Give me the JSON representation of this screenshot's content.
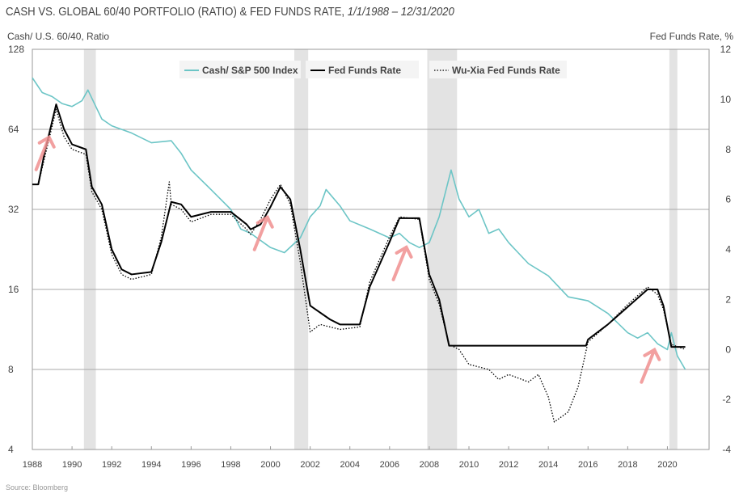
{
  "chart_data": {
    "type": "line",
    "title": "CASH VS. GLOBAL 60/40 PORTFOLIO (RATIO) & FED FUNDS RATE,",
    "subtitle": "1/1/1988 – 12/31/2020",
    "ylabel_left": "Cash/ U.S. 60/40, Ratio",
    "ylabel_right": "Fed Funds Rate, %",
    "source": "Source: Bloomberg",
    "xlim": [
      1988,
      2022.1
    ],
    "ylim_left": [
      4,
      128
    ],
    "yscale_left": "log2",
    "ylim_right": [
      -4,
      12
    ],
    "x_ticks": [
      1988,
      1990,
      1992,
      1994,
      1996,
      1998,
      2000,
      2002,
      2004,
      2006,
      2008,
      2010,
      2012,
      2014,
      2016,
      2018,
      2020
    ],
    "y_ticks_left": [
      4,
      8,
      16,
      32,
      64,
      128
    ],
    "y_ticks_right": [
      -4,
      -2,
      0,
      2,
      4,
      6,
      8,
      10,
      12
    ],
    "grid": "horizontal",
    "legend_position": "top-center",
    "recessions": [
      [
        1990.6,
        1991.2
      ],
      [
        2001.2,
        2001.9
      ],
      [
        2007.9,
        2009.4
      ],
      [
        2020.1,
        2020.5
      ]
    ],
    "series": [
      {
        "name": "Cash/ S&P 500 Index",
        "axis": "left",
        "color": "#6cc5c6",
        "style": "solid",
        "points": [
          [
            1988,
            100
          ],
          [
            1988.5,
            88
          ],
          [
            1989,
            85
          ],
          [
            1989.5,
            80
          ],
          [
            1990,
            78
          ],
          [
            1990.5,
            82
          ],
          [
            1990.8,
            90
          ],
          [
            1991.5,
            70
          ],
          [
            1992,
            66
          ],
          [
            1993,
            62
          ],
          [
            1994,
            57
          ],
          [
            1995,
            58
          ],
          [
            1995.5,
            52
          ],
          [
            1996,
            45
          ],
          [
            1997,
            38
          ],
          [
            1998,
            32
          ],
          [
            1998.5,
            27
          ],
          [
            1999,
            26
          ],
          [
            2000,
            23
          ],
          [
            2000.7,
            22
          ],
          [
            2001.5,
            25
          ],
          [
            2002,
            30
          ],
          [
            2002.5,
            33
          ],
          [
            2002.8,
            38
          ],
          [
            2003.5,
            33
          ],
          [
            2004,
            29
          ],
          [
            2005,
            27
          ],
          [
            2006,
            25
          ],
          [
            2006.5,
            26
          ],
          [
            2007,
            24
          ],
          [
            2007.5,
            23
          ],
          [
            2008,
            24
          ],
          [
            2008.5,
            30
          ],
          [
            2009.1,
            45
          ],
          [
            2009.5,
            35
          ],
          [
            2010,
            30
          ],
          [
            2010.5,
            32
          ],
          [
            2011,
            26
          ],
          [
            2011.5,
            27
          ],
          [
            2012,
            24
          ],
          [
            2013,
            20
          ],
          [
            2014,
            18
          ],
          [
            2015,
            15
          ],
          [
            2016,
            14.5
          ],
          [
            2017,
            13
          ],
          [
            2018,
            11
          ],
          [
            2018.5,
            10.5
          ],
          [
            2019,
            11
          ],
          [
            2019.5,
            10
          ],
          [
            2020,
            9.5
          ],
          [
            2020.2,
            11
          ],
          [
            2020.5,
            9
          ],
          [
            2020.9,
            8
          ]
        ]
      },
      {
        "name": "Fed Funds Rate",
        "axis": "right",
        "color": "#000000",
        "style": "solid",
        "points": [
          [
            1988,
            6.6
          ],
          [
            1988.3,
            6.6
          ],
          [
            1988.6,
            7.8
          ],
          [
            1989.2,
            9.8
          ],
          [
            1989.6,
            8.8
          ],
          [
            1990,
            8.2
          ],
          [
            1990.7,
            8.0
          ],
          [
            1991,
            6.5
          ],
          [
            1991.5,
            5.8
          ],
          [
            1992,
            4.0
          ],
          [
            1992.5,
            3.2
          ],
          [
            1993,
            3.0
          ],
          [
            1994,
            3.1
          ],
          [
            1994.5,
            4.3
          ],
          [
            1995,
            5.9
          ],
          [
            1995.5,
            5.8
          ],
          [
            1996,
            5.3
          ],
          [
            1997,
            5.5
          ],
          [
            1998,
            5.5
          ],
          [
            1998.8,
            5.0
          ],
          [
            1999,
            4.8
          ],
          [
            1999.5,
            5.0
          ],
          [
            2000,
            5.7
          ],
          [
            2000.5,
            6.5
          ],
          [
            2001,
            6.0
          ],
          [
            2001.5,
            4.0
          ],
          [
            2002,
            1.75
          ],
          [
            2003,
            1.2
          ],
          [
            2003.5,
            1.0
          ],
          [
            2004.5,
            1.0
          ],
          [
            2005,
            2.5
          ],
          [
            2006,
            4.3
          ],
          [
            2006.5,
            5.25
          ],
          [
            2007.5,
            5.25
          ],
          [
            2008,
            3.0
          ],
          [
            2008.5,
            2.0
          ],
          [
            2009,
            0.15
          ],
          [
            2015.9,
            0.15
          ],
          [
            2016,
            0.4
          ],
          [
            2017,
            1.0
          ],
          [
            2018,
            1.7
          ],
          [
            2019,
            2.4
          ],
          [
            2019.5,
            2.4
          ],
          [
            2019.8,
            1.75
          ],
          [
            2020.2,
            0.1
          ],
          [
            2020.9,
            0.1
          ]
        ]
      },
      {
        "name": "Wu-Xia Fed Funds Rate",
        "axis": "right",
        "color": "#000000",
        "style": "dotted",
        "points": [
          [
            1988,
            6.6
          ],
          [
            1988.3,
            6.6
          ],
          [
            1988.6,
            7.6
          ],
          [
            1989.2,
            9.6
          ],
          [
            1989.6,
            8.5
          ],
          [
            1990,
            8.0
          ],
          [
            1990.7,
            7.8
          ],
          [
            1991,
            6.3
          ],
          [
            1991.5,
            5.6
          ],
          [
            1992,
            3.8
          ],
          [
            1992.5,
            3.0
          ],
          [
            1993,
            2.8
          ],
          [
            1994,
            3.0
          ],
          [
            1994.5,
            4.5
          ],
          [
            1994.9,
            6.7
          ],
          [
            1995,
            5.8
          ],
          [
            1995.5,
            5.6
          ],
          [
            1996,
            5.1
          ],
          [
            1997,
            5.4
          ],
          [
            1998,
            5.4
          ],
          [
            1998.8,
            4.8
          ],
          [
            1999,
            4.6
          ],
          [
            1999.5,
            5.2
          ],
          [
            2000,
            6.0
          ],
          [
            2000.5,
            6.6
          ],
          [
            2001,
            5.8
          ],
          [
            2001.5,
            3.5
          ],
          [
            2002,
            0.7
          ],
          [
            2002.5,
            1.0
          ],
          [
            2003,
            0.9
          ],
          [
            2003.5,
            0.8
          ],
          [
            2004.5,
            0.9
          ],
          [
            2005,
            2.7
          ],
          [
            2006,
            4.5
          ],
          [
            2006.5,
            5.3
          ],
          [
            2007.5,
            5.2
          ],
          [
            2008,
            2.8
          ],
          [
            2008.5,
            1.8
          ],
          [
            2009,
            0.2
          ],
          [
            2009.5,
            0.0
          ],
          [
            2010,
            -0.6
          ],
          [
            2011,
            -0.8
          ],
          [
            2011.5,
            -1.2
          ],
          [
            2012,
            -1.0
          ],
          [
            2013,
            -1.3
          ],
          [
            2013.5,
            -1.0
          ],
          [
            2014,
            -1.9
          ],
          [
            2014.3,
            -2.9
          ],
          [
            2015,
            -2.5
          ],
          [
            2015.5,
            -1.5
          ],
          [
            2016,
            0.3
          ],
          [
            2017,
            1.0
          ],
          [
            2018,
            1.8
          ],
          [
            2019,
            2.5
          ],
          [
            2019.5,
            2.2
          ],
          [
            2019.8,
            1.6
          ],
          [
            2020.2,
            0.2
          ],
          [
            2020.9,
            0.0
          ]
        ]
      }
    ],
    "annotations": [
      [
        1988.6,
        8
      ],
      [
        1999.6,
        4.8
      ],
      [
        2006.6,
        3.6
      ],
      [
        2019.1,
        -0.5
      ]
    ]
  }
}
